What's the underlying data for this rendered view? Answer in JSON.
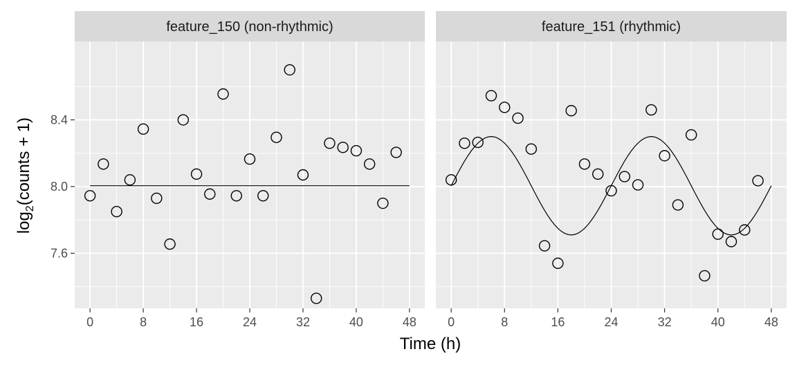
{
  "chart_data": {
    "type": "scatter",
    "xlabel": "Time (h)",
    "ylabel_prefix": "log",
    "ylabel_sub": "2",
    "ylabel_suffix": "(counts + 1)",
    "x_ticks": [
      "0",
      "8",
      "16",
      "24",
      "32",
      "40",
      "48"
    ],
    "y_ticks": [
      "7.6",
      "8.0",
      "8.4"
    ],
    "xlim": [
      -2.3,
      50.3
    ],
    "ylim": [
      7.27,
      8.87
    ],
    "grid": true,
    "colors": {
      "panel_bg": "#ebebeb",
      "strip_bg": "#d9d9d9",
      "grid": "#ffffff",
      "point_stroke": "#000000",
      "line": "#000000"
    },
    "panels": [
      {
        "strip": "feature_150 (non-rhythmic)",
        "fit": {
          "type": "flat",
          "mesor": 8.005
        },
        "points": [
          [
            0,
            7.945
          ],
          [
            2,
            8.135
          ],
          [
            4,
            7.85
          ],
          [
            6,
            8.04
          ],
          [
            8,
            8.345
          ],
          [
            10,
            7.93
          ],
          [
            12,
            7.655
          ],
          [
            14,
            8.4
          ],
          [
            16,
            8.075
          ],
          [
            18,
            7.955
          ],
          [
            20,
            8.555
          ],
          [
            22,
            7.945
          ],
          [
            24,
            8.165
          ],
          [
            26,
            7.945
          ],
          [
            28,
            8.295
          ],
          [
            30,
            8.7
          ],
          [
            32,
            8.07
          ],
          [
            34,
            7.33
          ],
          [
            36,
            8.26
          ],
          [
            38,
            8.235
          ],
          [
            40,
            8.215
          ],
          [
            42,
            8.135
          ],
          [
            44,
            7.9
          ],
          [
            46,
            8.205
          ]
        ]
      },
      {
        "strip": "feature_151 (rhythmic)",
        "fit": {
          "type": "cosinor",
          "mesor": 8.005,
          "amplitude": 0.295,
          "period": 24,
          "acrophase": 6
        },
        "points": [
          [
            0,
            8.04
          ],
          [
            2,
            8.26
          ],
          [
            4,
            8.265
          ],
          [
            6,
            8.545
          ],
          [
            8,
            8.475
          ],
          [
            10,
            8.41
          ],
          [
            12,
            8.225
          ],
          [
            14,
            7.645
          ],
          [
            16,
            7.54
          ],
          [
            18,
            8.455
          ],
          [
            20,
            8.135
          ],
          [
            22,
            8.075
          ],
          [
            24,
            7.975
          ],
          [
            26,
            8.06
          ],
          [
            28,
            8.01
          ],
          [
            30,
            8.46
          ],
          [
            32,
            8.185
          ],
          [
            34,
            7.89
          ],
          [
            36,
            8.31
          ],
          [
            38,
            7.465
          ],
          [
            40,
            7.715
          ],
          [
            42,
            7.67
          ],
          [
            44,
            7.74
          ],
          [
            46,
            8.035
          ]
        ]
      }
    ]
  }
}
